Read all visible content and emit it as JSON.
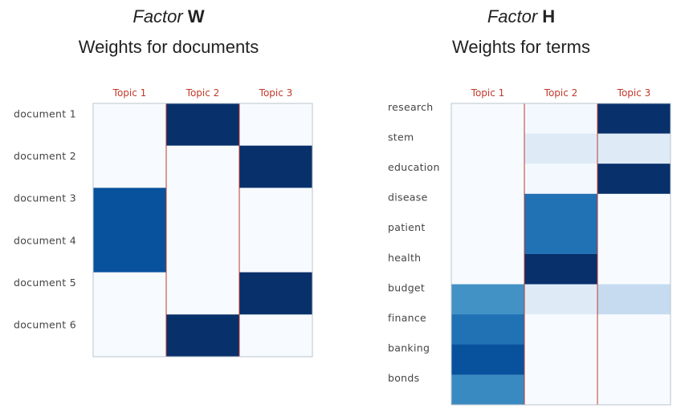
{
  "chart_data": [
    {
      "type": "heatmap",
      "title_italic": "Factor",
      "title_bold": "W",
      "subtitle": "Weights for documents",
      "columns": [
        "Topic 1",
        "Topic 2",
        "Topic 3"
      ],
      "rows": [
        "document 1",
        "document 2",
        "document 3",
        "document 4",
        "document 5",
        "document 6"
      ],
      "values": [
        [
          0.0,
          1.0,
          0.0
        ],
        [
          0.0,
          0.0,
          1.0
        ],
        [
          0.85,
          0.0,
          0.0
        ],
        [
          0.85,
          0.0,
          0.0
        ],
        [
          0.0,
          0.0,
          1.0
        ],
        [
          0.0,
          1.0,
          0.0
        ]
      ]
    },
    {
      "type": "heatmap",
      "title_italic": "Factor",
      "title_bold": "H",
      "subtitle": "Weights for terms",
      "columns": [
        "Topic 1",
        "Topic 2",
        "Topic 3"
      ],
      "rows": [
        "research",
        "stem",
        "education",
        "disease",
        "patient",
        "health",
        "budget",
        "finance",
        "banking",
        "bonds"
      ],
      "values": [
        [
          0.0,
          0.02,
          1.0
        ],
        [
          0.0,
          0.12,
          0.12
        ],
        [
          0.0,
          0.02,
          1.0
        ],
        [
          0.0,
          0.7,
          0.0
        ],
        [
          0.0,
          0.7,
          0.0
        ],
        [
          0.0,
          1.0,
          0.0
        ],
        [
          0.5,
          0.12,
          0.2
        ],
        [
          0.7,
          0.0,
          0.0
        ],
        [
          0.85,
          0.0,
          0.0
        ],
        [
          0.55,
          0.0,
          0.0
        ]
      ]
    }
  ],
  "colors": {
    "colormap": "Blues",
    "separator": "#c0392b",
    "frame": "#b8c4cc"
  }
}
